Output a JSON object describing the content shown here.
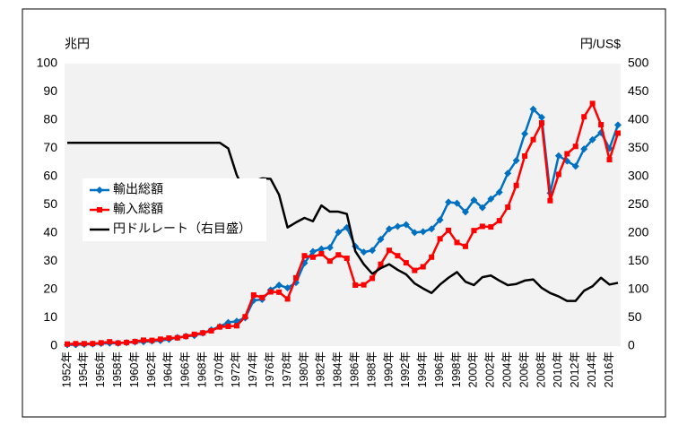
{
  "chart_data": {
    "type": "line",
    "ylabel": "兆円",
    "y2label": "円/US$",
    "categories": [
      "1952年",
      null,
      "1954年",
      null,
      "1956年",
      null,
      "1958年",
      null,
      "1960年",
      null,
      "1962年",
      null,
      "1964年",
      null,
      "1966年",
      null,
      "1968年",
      null,
      "1970年",
      null,
      "1972年",
      null,
      "1974年",
      null,
      "1976年",
      null,
      "1978年",
      null,
      "1980年",
      null,
      "1982年",
      null,
      "1984年",
      null,
      "1986年",
      null,
      "1988年",
      null,
      "1990年",
      null,
      "1992年",
      null,
      "1994年",
      null,
      "1996年",
      null,
      "1998年",
      null,
      "2000年",
      null,
      "2002年",
      null,
      "2004年",
      null,
      "2006年",
      null,
      "2008年",
      null,
      "2010年",
      null,
      "2012年",
      null,
      "2014年",
      null,
      "2016年",
      null
    ],
    "series": [
      {
        "name": "輸出総額",
        "color": "#0070c0",
        "marker": "diamond",
        "axis": "y",
        "values": [
          0.46,
          0.46,
          0.59,
          0.72,
          0.9,
          1.03,
          1.03,
          1.24,
          1.46,
          1.53,
          1.79,
          1.96,
          2.4,
          3.04,
          3.5,
          3.74,
          4.6,
          5.76,
          6.95,
          8.39,
          8.8,
          10.0,
          16.2,
          16.5,
          19.9,
          21.6,
          20.6,
          22.5,
          29.4,
          33.5,
          34.4,
          34.9,
          40.3,
          42.0,
          35.3,
          33.3,
          33.9,
          37.8,
          41.5,
          42.4,
          43.0,
          40.2,
          40.5,
          41.5,
          44.7,
          51.0,
          50.6,
          47.5,
          51.7,
          49.0,
          52.1,
          54.5,
          61.2,
          65.7,
          75.2,
          83.9,
          81.0,
          54.2,
          67.4,
          65.5,
          63.7,
          69.8,
          73.1,
          75.6,
          70.0,
          78.3
        ]
      },
      {
        "name": "輸入総額",
        "color": "#ff0000",
        "marker": "square",
        "axis": "y",
        "values": [
          0.73,
          0.87,
          0.86,
          0.89,
          1.16,
          1.54,
          1.09,
          1.3,
          1.62,
          2.1,
          2.03,
          2.45,
          2.86,
          2.94,
          3.43,
          4.18,
          4.68,
          5.42,
          6.8,
          7.0,
          7.2,
          10.4,
          18.1,
          17.2,
          19.2,
          19.1,
          16.7,
          24.2,
          32.0,
          31.5,
          32.7,
          30.1,
          32.3,
          31.1,
          21.6,
          21.7,
          24.0,
          29.0,
          33.9,
          32.0,
          29.5,
          26.8,
          28.1,
          31.5,
          38.0,
          41.0,
          36.7,
          35.3,
          40.9,
          42.4,
          42.2,
          44.4,
          49.2,
          56.9,
          67.3,
          73.1,
          79.0,
          51.5,
          60.8,
          68.1,
          70.7,
          81.2,
          85.9,
          78.4,
          66.0,
          75.4
        ]
      },
      {
        "name": "円ドルレート（右目盛）",
        "color": "#000000",
        "marker": "none",
        "axis": "y2",
        "values": [
          360,
          360,
          360,
          360,
          360,
          360,
          360,
          360,
          360,
          360,
          360,
          360,
          360,
          360,
          360,
          360,
          360,
          360,
          360,
          350,
          303,
          272,
          292,
          297,
          296,
          268,
          210,
          219,
          227,
          221,
          249,
          238,
          238,
          234,
          168,
          145,
          128,
          138,
          145,
          135,
          127,
          111,
          102,
          94,
          109,
          121,
          131,
          114,
          108,
          122,
          125,
          116,
          108,
          110,
          116,
          118,
          103,
          94,
          88,
          80,
          80,
          98,
          106,
          121,
          109,
          112
        ]
      }
    ],
    "ylim": [
      0,
      100
    ],
    "yticks": [
      0,
      10,
      20,
      30,
      40,
      50,
      60,
      70,
      80,
      90,
      100
    ],
    "y2lim": [
      0,
      500
    ],
    "y2ticks": [
      0,
      50,
      100,
      150,
      200,
      250,
      300,
      350,
      400,
      450,
      500
    ],
    "grid": false
  }
}
